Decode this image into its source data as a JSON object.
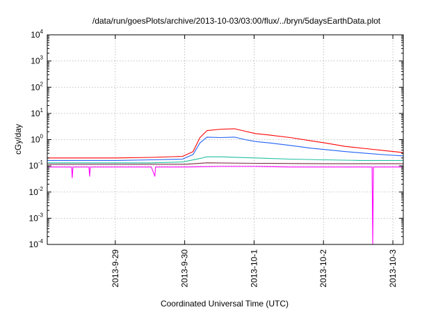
{
  "chart_data": {
    "type": "line",
    "title": "/data/run/goesPlots/archive/2013-10-03/03:00/flux/../bryn/5daysEarthData.plot",
    "xlabel": "Coordinated Universal Time (UTC)",
    "ylabel": "cGy/day",
    "yscale": "log",
    "ylim": [
      0.0001,
      10000
    ],
    "xlim": [
      0,
      5.13
    ],
    "grid": true,
    "y_ticks": [
      {
        "value": 0.0001,
        "base": "10",
        "exp": "-4"
      },
      {
        "value": 0.001,
        "base": "10",
        "exp": "-3"
      },
      {
        "value": 0.01,
        "base": "10",
        "exp": "-2"
      },
      {
        "value": 0.1,
        "base": "10",
        "exp": "-1"
      },
      {
        "value": 1,
        "base": "10",
        "exp": "0"
      },
      {
        "value": 10,
        "base": "10",
        "exp": "1"
      },
      {
        "value": 100,
        "base": "10",
        "exp": "2"
      },
      {
        "value": 1000,
        "base": "10",
        "exp": "3"
      },
      {
        "value": 10000,
        "base": "10",
        "exp": "4"
      }
    ],
    "x_ticks": [
      {
        "value": 0.98,
        "label": "2013-9-29"
      },
      {
        "value": 1.98,
        "label": "2013-9-30"
      },
      {
        "value": 2.98,
        "label": "2013-10-1"
      },
      {
        "value": 3.98,
        "label": "2013-10-2"
      },
      {
        "value": 4.98,
        "label": "2013-10-3"
      }
    ],
    "series": [
      {
        "color": "#ff0000",
        "x": [
          0,
          0.5,
          1.0,
          1.5,
          1.95,
          2.1,
          2.2,
          2.3,
          2.5,
          2.7,
          2.85,
          3.0,
          3.2,
          3.5,
          3.8,
          4.0,
          4.3,
          4.6,
          4.9,
          5.13
        ],
        "values": [
          0.2,
          0.2,
          0.2,
          0.21,
          0.23,
          0.35,
          1.2,
          2.2,
          2.5,
          2.6,
          2.1,
          1.7,
          1.5,
          1.2,
          0.9,
          0.75,
          0.55,
          0.45,
          0.37,
          0.32
        ]
      },
      {
        "color": "#1f5ff5",
        "x": [
          0,
          0.5,
          1.0,
          1.5,
          1.95,
          2.1,
          2.2,
          2.3,
          2.5,
          2.7,
          2.85,
          3.0,
          3.2,
          3.5,
          3.8,
          4.0,
          4.3,
          4.6,
          4.9,
          5.13
        ],
        "values": [
          0.16,
          0.16,
          0.16,
          0.17,
          0.18,
          0.27,
          0.75,
          1.25,
          1.2,
          1.25,
          1.0,
          0.85,
          0.75,
          0.6,
          0.47,
          0.42,
          0.35,
          0.3,
          0.26,
          0.24
        ]
      },
      {
        "color": "#20c0a0",
        "x": [
          0,
          0.5,
          1.0,
          1.5,
          1.95,
          2.2,
          2.3,
          2.5,
          3.0,
          3.5,
          4.0,
          4.5,
          5.13
        ],
        "values": [
          0.13,
          0.13,
          0.13,
          0.13,
          0.14,
          0.19,
          0.22,
          0.22,
          0.2,
          0.18,
          0.17,
          0.16,
          0.16
        ]
      },
      {
        "color": "#7a2a40",
        "x": [
          0,
          1.0,
          2.0,
          2.3,
          3.0,
          4.0,
          5.13
        ],
        "values": [
          0.115,
          0.115,
          0.115,
          0.13,
          0.125,
          0.12,
          0.12
        ]
      },
      {
        "color": "#ff00ff",
        "x": [
          0,
          0.35,
          0.36,
          0.37,
          0.6,
          0.61,
          0.62,
          1.0,
          1.5,
          1.55,
          1.56,
          2.0,
          2.5,
          3.0,
          3.5,
          4.0,
          4.68,
          4.69,
          4.7,
          5.13
        ],
        "values": [
          0.09,
          0.09,
          0.035,
          0.09,
          0.09,
          0.04,
          0.09,
          0.09,
          0.09,
          0.04,
          0.09,
          0.09,
          0.095,
          0.095,
          0.09,
          0.09,
          0.09,
          0.0001,
          0.09,
          0.09
        ]
      }
    ]
  }
}
